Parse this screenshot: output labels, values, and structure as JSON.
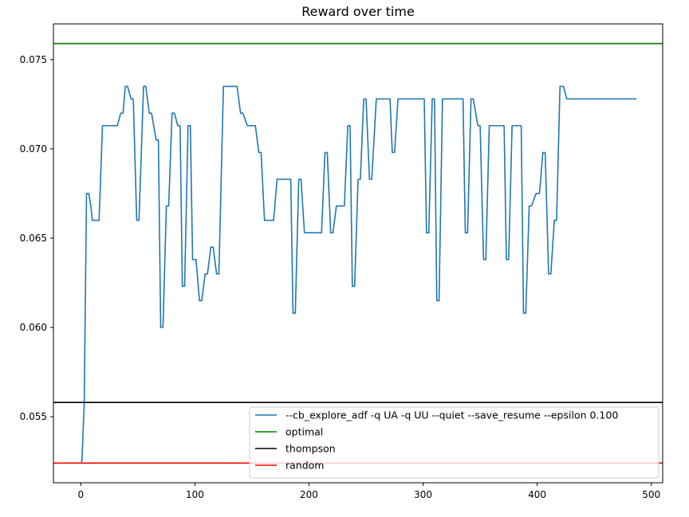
{
  "chart_data": {
    "type": "line",
    "title": "Reward over time",
    "xlabel": "",
    "ylabel": "",
    "xlim": [
      -24,
      510
    ],
    "ylim": [
      0.0513,
      0.077
    ],
    "x_ticks": [
      0,
      100,
      200,
      300,
      400,
      500
    ],
    "x_tick_labels": [
      "0",
      "100",
      "200",
      "300",
      "400",
      "500"
    ],
    "y_ticks": [
      0.055,
      0.06,
      0.065,
      0.07,
      0.075
    ],
    "y_tick_labels": [
      "0.055",
      "0.060",
      "0.065",
      "0.070",
      "0.075"
    ],
    "grid": false,
    "legend_position": "lower-right",
    "series": [
      {
        "name": "--cb_explore_adf -q UA -q UU --quiet --save_resume --epsilon 0.100",
        "color": "#1f77b4",
        "kind": "line",
        "points": [
          [
            0,
            0.0525
          ],
          [
            1,
            0.0525
          ],
          [
            3,
            0.0558
          ],
          [
            5,
            0.0675
          ],
          [
            7,
            0.0675
          ],
          [
            9,
            0.0667
          ],
          [
            10,
            0.066
          ],
          [
            16,
            0.066
          ],
          [
            19,
            0.0713
          ],
          [
            32,
            0.0713
          ],
          [
            35,
            0.072
          ],
          [
            37,
            0.072
          ],
          [
            39,
            0.0735
          ],
          [
            41,
            0.0735
          ],
          [
            44,
            0.0728
          ],
          [
            46,
            0.0728
          ],
          [
            49,
            0.066
          ],
          [
            51,
            0.066
          ],
          [
            55,
            0.0735
          ],
          [
            57,
            0.0735
          ],
          [
            60,
            0.072
          ],
          [
            62,
            0.072
          ],
          [
            66,
            0.0705
          ],
          [
            68,
            0.0705
          ],
          [
            70,
            0.06
          ],
          [
            72,
            0.06
          ],
          [
            75,
            0.0668
          ],
          [
            77,
            0.0668
          ],
          [
            80,
            0.072
          ],
          [
            82,
            0.072
          ],
          [
            85,
            0.0713
          ],
          [
            87,
            0.0713
          ],
          [
            89,
            0.0623
          ],
          [
            91,
            0.0623
          ],
          [
            94,
            0.0713
          ],
          [
            96,
            0.0713
          ],
          [
            98,
            0.0638
          ],
          [
            101,
            0.0638
          ],
          [
            104,
            0.0615
          ],
          [
            106,
            0.0615
          ],
          [
            109,
            0.063
          ],
          [
            111,
            0.063
          ],
          [
            114,
            0.0645
          ],
          [
            116,
            0.0645
          ],
          [
            119,
            0.063
          ],
          [
            121,
            0.063
          ],
          [
            125,
            0.0735
          ],
          [
            137,
            0.0735
          ],
          [
            140,
            0.072
          ],
          [
            142,
            0.072
          ],
          [
            146,
            0.0713
          ],
          [
            153,
            0.0713
          ],
          [
            156,
            0.0698
          ],
          [
            158,
            0.0698
          ],
          [
            161,
            0.066
          ],
          [
            169,
            0.066
          ],
          [
            172,
            0.0683
          ],
          [
            184,
            0.0683
          ],
          [
            186,
            0.0608
          ],
          [
            188,
            0.0608
          ],
          [
            191,
            0.0683
          ],
          [
            193,
            0.0683
          ],
          [
            196,
            0.0653
          ],
          [
            211,
            0.0653
          ],
          [
            214,
            0.0698
          ],
          [
            216,
            0.0698
          ],
          [
            219,
            0.0653
          ],
          [
            221,
            0.0653
          ],
          [
            224,
            0.0668
          ],
          [
            231,
            0.0668
          ],
          [
            234,
            0.0713
          ],
          [
            236,
            0.0713
          ],
          [
            238,
            0.0623
          ],
          [
            240,
            0.0623
          ],
          [
            243,
            0.0683
          ],
          [
            245,
            0.0683
          ],
          [
            248,
            0.0728
          ],
          [
            250,
            0.0728
          ],
          [
            253,
            0.0683
          ],
          [
            255,
            0.0683
          ],
          [
            259,
            0.0728
          ],
          [
            271,
            0.0728
          ],
          [
            273,
            0.0698
          ],
          [
            275,
            0.0698
          ],
          [
            278,
            0.0728
          ],
          [
            301,
            0.0728
          ],
          [
            303,
            0.0653
          ],
          [
            305,
            0.0653
          ],
          [
            308,
            0.0728
          ],
          [
            310,
            0.0728
          ],
          [
            312,
            0.0615
          ],
          [
            314,
            0.0615
          ],
          [
            317,
            0.0728
          ],
          [
            335,
            0.0728
          ],
          [
            337,
            0.0653
          ],
          [
            339,
            0.0653
          ],
          [
            342,
            0.0728
          ],
          [
            344,
            0.0728
          ],
          [
            348,
            0.0713
          ],
          [
            350,
            0.0713
          ],
          [
            353,
            0.0638
          ],
          [
            355,
            0.0638
          ],
          [
            358,
            0.0713
          ],
          [
            371,
            0.0713
          ],
          [
            373,
            0.0638
          ],
          [
            375,
            0.0638
          ],
          [
            378,
            0.0713
          ],
          [
            386,
            0.0713
          ],
          [
            388,
            0.0608
          ],
          [
            390,
            0.0608
          ],
          [
            393,
            0.0668
          ],
          [
            395,
            0.0668
          ],
          [
            399,
            0.0675
          ],
          [
            402,
            0.0675
          ],
          [
            405,
            0.0698
          ],
          [
            407,
            0.0698
          ],
          [
            410,
            0.063
          ],
          [
            412,
            0.063
          ],
          [
            415,
            0.066
          ],
          [
            417,
            0.066
          ],
          [
            420,
            0.0735
          ],
          [
            423,
            0.0735
          ],
          [
            426,
            0.0728
          ],
          [
            487,
            0.0728
          ]
        ]
      },
      {
        "name": "optimal",
        "color": "#008000",
        "kind": "hline",
        "y": 0.0759
      },
      {
        "name": "thompson",
        "color": "#000000",
        "kind": "hline",
        "y": 0.0558
      },
      {
        "name": "random",
        "color": "#ff0000",
        "kind": "hline",
        "y": 0.0524
      }
    ]
  }
}
